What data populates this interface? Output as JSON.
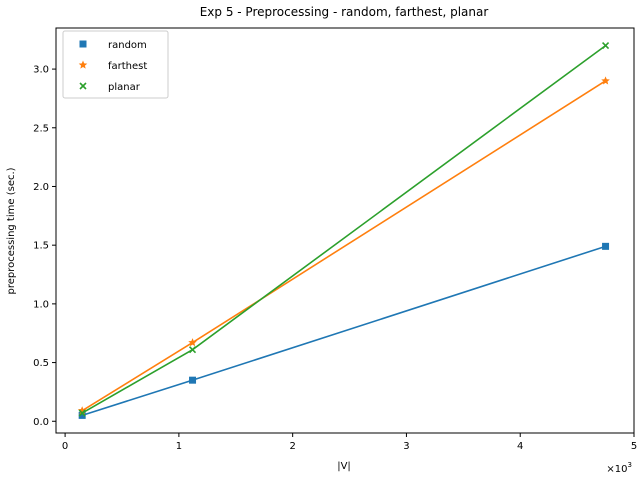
{
  "chart_data": {
    "type": "line",
    "title": "Exp 5 - Preprocessing - random, farthest, planar",
    "xlabel": "|V|",
    "ylabel": "preprocessing time (sec.)",
    "x_scale_label": "×10",
    "x_scale_exp": "3",
    "xlim": [
      -0.08,
      5.0
    ],
    "ylim": [
      -0.1,
      3.35
    ],
    "xticks": [
      0,
      1,
      2,
      3,
      4,
      5
    ],
    "xtick_labels": [
      "0",
      "1",
      "2",
      "3",
      "4",
      "5"
    ],
    "yticks": [
      0.0,
      0.5,
      1.0,
      1.5,
      2.0,
      2.5,
      3.0
    ],
    "ytick_labels": [
      "0.0",
      "0.5",
      "1.0",
      "1.5",
      "2.0",
      "2.5",
      "3.0"
    ],
    "grid": false,
    "legend_position": "top-left",
    "series": [
      {
        "name": "random",
        "color": "#1f77b4",
        "marker": "square",
        "x": [
          0.15,
          1.12,
          4.75
        ],
        "values": [
          0.05,
          0.35,
          1.49
        ]
      },
      {
        "name": "farthest",
        "color": "#ff7f0e",
        "marker": "star",
        "x": [
          0.15,
          1.12,
          4.75
        ],
        "values": [
          0.09,
          0.67,
          2.9
        ]
      },
      {
        "name": "planar",
        "color": "#2ca02c",
        "marker": "x",
        "x": [
          0.15,
          1.12,
          4.75
        ],
        "values": [
          0.07,
          0.61,
          3.2
        ]
      }
    ]
  }
}
